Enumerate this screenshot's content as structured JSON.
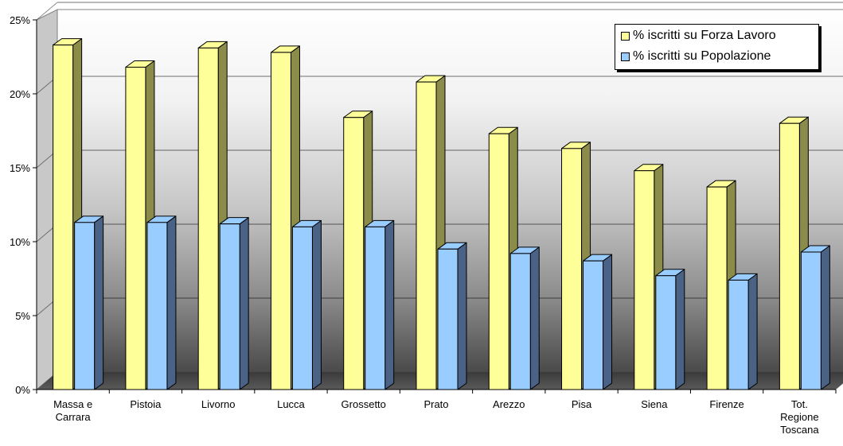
{
  "chart_data": {
    "type": "bar",
    "title": "",
    "xlabel": "",
    "ylabel": "",
    "categories": [
      "Massa e Carrara",
      "Pistoia",
      "Livorno",
      "Lucca",
      "Grossetto",
      "Prato",
      "Arezzo",
      "Pisa",
      "Siena",
      "Firenze",
      "Tot. Regione Toscana"
    ],
    "category_lines": [
      [
        "Massa e",
        "Carrara"
      ],
      [
        "Pistoia"
      ],
      [
        "Livorno"
      ],
      [
        "Lucca"
      ],
      [
        "Grossetto"
      ],
      [
        "Prato"
      ],
      [
        "Arezzo"
      ],
      [
        "Pisa"
      ],
      [
        "Siena"
      ],
      [
        "Firenze"
      ],
      [
        "Tot.",
        "Regione",
        "Toscana"
      ]
    ],
    "series": [
      {
        "name": "% iscritti su Forza Lavoro",
        "color": "#ffff99",
        "side_color": "#8c8c4a",
        "values": [
          23.3,
          21.8,
          23.1,
          22.8,
          18.4,
          20.8,
          17.3,
          16.3,
          14.8,
          13.7,
          18.0
        ]
      },
      {
        "name": "% iscritti su Popolazione",
        "color": "#99ccff",
        "side_color": "#4a6285",
        "values": [
          11.3,
          11.3,
          11.2,
          11.0,
          11.0,
          9.5,
          9.2,
          8.7,
          7.7,
          7.4,
          9.3
        ]
      }
    ],
    "ylim": [
      0,
      25
    ],
    "yticks": [
      0,
      5,
      10,
      15,
      20,
      25
    ],
    "ytick_labels": [
      "0%",
      "5%",
      "10%",
      "15%",
      "20%",
      "25%"
    ],
    "grid": true,
    "legend_position": "top-right",
    "three_d": true
  }
}
